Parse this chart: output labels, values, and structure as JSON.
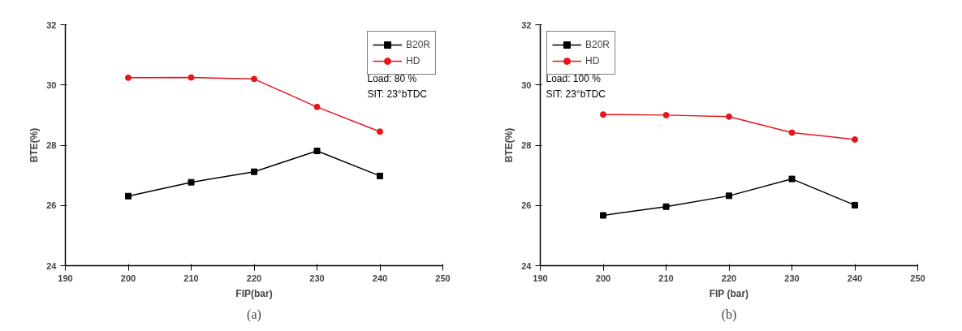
{
  "chart_data": [
    {
      "type": "line",
      "xlabel": "FIP(bar)",
      "ylabel": "BTE(%)",
      "x": [
        200,
        210,
        220,
        230,
        240
      ],
      "series": [
        {
          "name": "B20R",
          "color": "#000000",
          "marker": "square",
          "values": [
            26.31,
            26.77,
            27.12,
            27.81,
            26.98
          ]
        },
        {
          "name": "HD",
          "color": "#e8141c",
          "marker": "circle",
          "values": [
            30.24,
            30.25,
            30.2,
            29.27,
            28.45
          ]
        }
      ],
      "xlim": [
        190,
        250
      ],
      "xticks": [
        190,
        200,
        210,
        220,
        230,
        240,
        250
      ],
      "ylim": [
        24,
        32
      ],
      "yticks": [
        24,
        26,
        28,
        30,
        32
      ],
      "legend": "top right",
      "grid": false,
      "annotations": [
        "Load: 80 %",
        "SIT: 23°bTDC",
        "(a)"
      ]
    },
    {
      "type": "line",
      "xlabel": "FIP (bar)",
      "ylabel": "BTE(%)",
      "x": [
        200,
        210,
        220,
        230,
        240
      ],
      "series": [
        {
          "name": "B20R",
          "color": "#000000",
          "marker": "square",
          "values": [
            25.67,
            25.96,
            26.32,
            26.88,
            26.01
          ]
        },
        {
          "name": "HD",
          "color": "#e8141c",
          "marker": "circle",
          "values": [
            29.02,
            29.0,
            28.95,
            28.42,
            28.19
          ]
        }
      ],
      "xlim": [
        190,
        250
      ],
      "xticks": [
        190,
        200,
        210,
        220,
        230,
        240,
        250
      ],
      "ylim": [
        24,
        32
      ],
      "yticks": [
        24,
        26,
        28,
        30,
        32
      ],
      "legend": "top left",
      "grid": false,
      "annotations": [
        "Load: 100 %",
        "SIT: 23°bTDC",
        "(b)"
      ]
    }
  ]
}
